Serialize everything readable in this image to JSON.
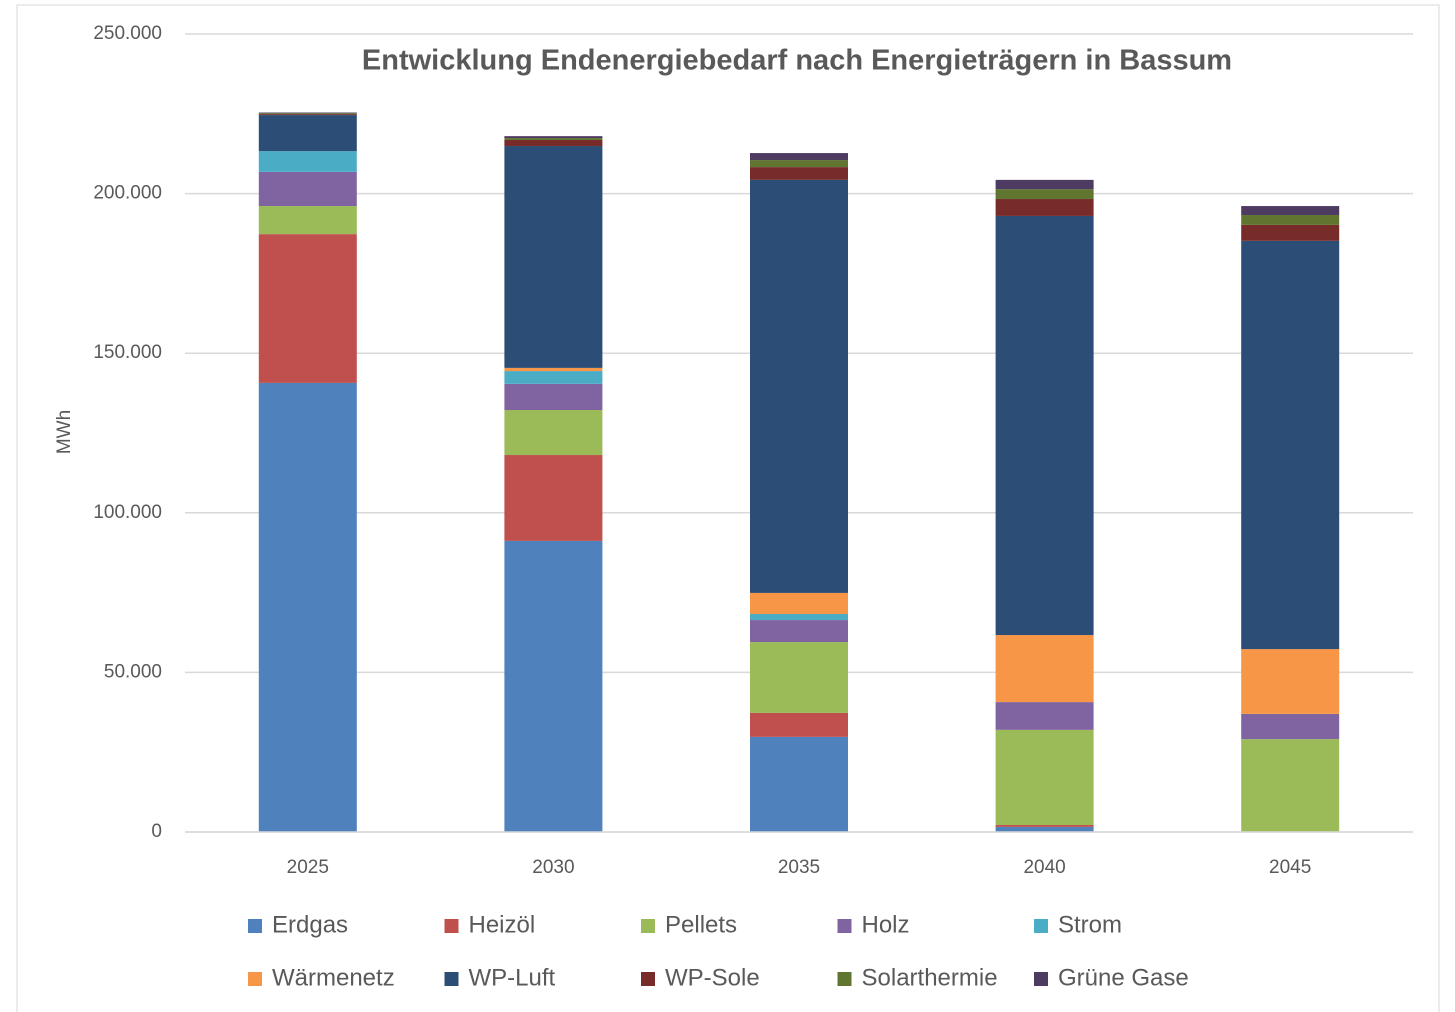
{
  "chart_data": {
    "type": "stacked_bar",
    "title": "Entwicklung Endenergiebedarf nach Energieträgern in Bassum",
    "y_label": "MWh",
    "categories": [
      "2025",
      "2030",
      "2035",
      "2040",
      "2045"
    ],
    "ylim": [
      0,
      250000
    ],
    "yticks": [
      0,
      {
        "value": 50000,
        "label": "50.000"
      },
      {
        "value": 100000,
        "label": "100.000"
      },
      {
        "value": 150000,
        "label": "150.000"
      },
      {
        "value": 200000,
        "label": "200.000"
      },
      {
        "value": 250000,
        "label": "250.000"
      }
    ],
    "grid": true,
    "legend": "bottom",
    "series": [
      {
        "name": "Erdgas",
        "color": "#4f81bd",
        "values": [
          140700,
          91200,
          29800,
          1600,
          0
        ]
      },
      {
        "name": "Heizöl",
        "color": "#c0504d",
        "values": [
          46600,
          26900,
          7500,
          600,
          0
        ]
      },
      {
        "name": "Pellets",
        "color": "#9bbb59",
        "values": [
          8800,
          14100,
          22200,
          29800,
          29100
        ]
      },
      {
        "name": "Holz",
        "color": "#8064a2",
        "values": [
          10700,
          8200,
          6900,
          8700,
          7900
        ]
      },
      {
        "name": "Strom",
        "color": "#4bacc6",
        "values": [
          6500,
          4000,
          1900,
          0,
          0
        ]
      },
      {
        "name": "Wärmenetz",
        "color": "#f79646",
        "values": [
          0,
          1000,
          6600,
          21000,
          20300
        ]
      },
      {
        "name": "WP-Luft",
        "color": "#2c4d75",
        "values": [
          11300,
          69500,
          129400,
          131300,
          127900
        ]
      },
      {
        "name": "WP-Sole",
        "color": "#772c2a",
        "values": [
          300,
          1900,
          4000,
          5300,
          5000
        ]
      },
      {
        "name": "Solarthermie",
        "color": "#5f7530",
        "values": [
          300,
          600,
          2200,
          3100,
          3100
        ]
      },
      {
        "name": "Grüne Gase",
        "color": "#4d3b62",
        "values": [
          200,
          600,
          2200,
          2900,
          2800
        ]
      }
    ]
  }
}
